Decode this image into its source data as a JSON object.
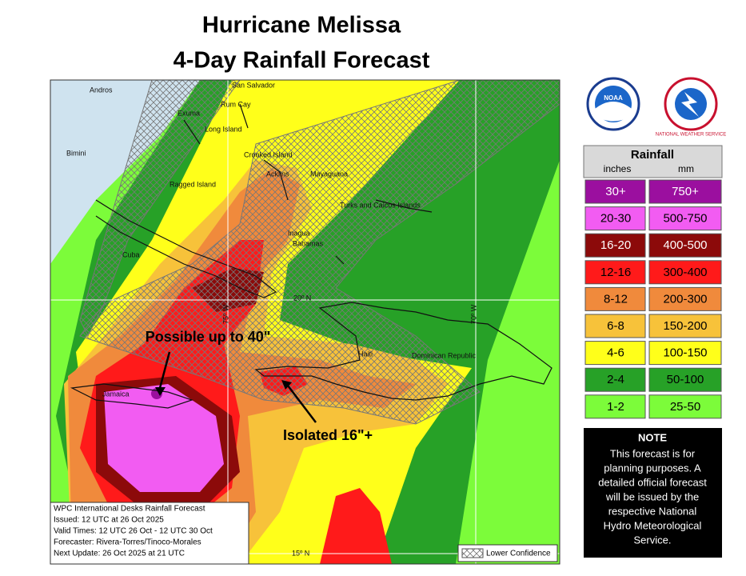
{
  "header": {
    "title_lines": [
      "Hurricane Melissa",
      "4-Day Rainfall Forecast"
    ]
  },
  "map": {
    "places": [
      "Andros",
      "San Salvador",
      "Rum Cay",
      "Exuma",
      "Long Island",
      "Bimini",
      "Crooked Island",
      "Acklins",
      "Mayaguana",
      "Ragged Island",
      "Turks and Caicos Islands",
      "Inagua",
      "Bahamas",
      "Cuba",
      "Haiti",
      "Dominican Republic",
      "Jamaica"
    ],
    "grid_labels": [
      "20º N",
      "75º W",
      "70º W",
      "15º N"
    ],
    "annotations": [
      "Possible up to 40\"",
      "Isolated 16\"+"
    ],
    "info_lines": [
      "WPC International Desks Rainfall Forecast",
      "Issued: 12 UTC at 26 Oct 2025",
      "Valid Times: 12 UTC 26 Oct - 12 UTC 30 Oct",
      "Forecaster: Rivera-Torres/Tinoco-Morales",
      "Next Update: 26 Oct 2025 at 21 UTC"
    ],
    "hatch_label": "Lower Confidence"
  },
  "logos": [
    "NOAA",
    "NATIONAL WEATHER SERVICE"
  ],
  "legend": {
    "title": "Rainfall",
    "units": [
      "inches",
      "mm"
    ],
    "rows": [
      {
        "inches": "30+",
        "mm": "750+",
        "color": "#9b0f9f"
      },
      {
        "inches": "20-30",
        "mm": "500-750",
        "color": "#f25cf2"
      },
      {
        "inches": "16-20",
        "mm": "400-500",
        "color": "#8c0a0a"
      },
      {
        "inches": "12-16",
        "mm": "300-400",
        "color": "#ff1a1a"
      },
      {
        "inches": "8-12",
        "mm": "200-300",
        "color": "#f08a3c"
      },
      {
        "inches": "6-8",
        "mm": "150-200",
        "color": "#f7c23a"
      },
      {
        "inches": "4-6",
        "mm": "100-150",
        "color": "#ffff1a"
      },
      {
        "inches": "2-4",
        "mm": "50-100",
        "color": "#27a127"
      },
      {
        "inches": "1-2",
        "mm": "25-50",
        "color": "#7cfc3a"
      }
    ]
  },
  "note": {
    "title": "NOTE",
    "lines": [
      "This forecast is for",
      "planning purposes. A",
      "detailed official forecast",
      "will be issued by the",
      "respective National",
      "Hydro Meteorological",
      "Service."
    ]
  }
}
